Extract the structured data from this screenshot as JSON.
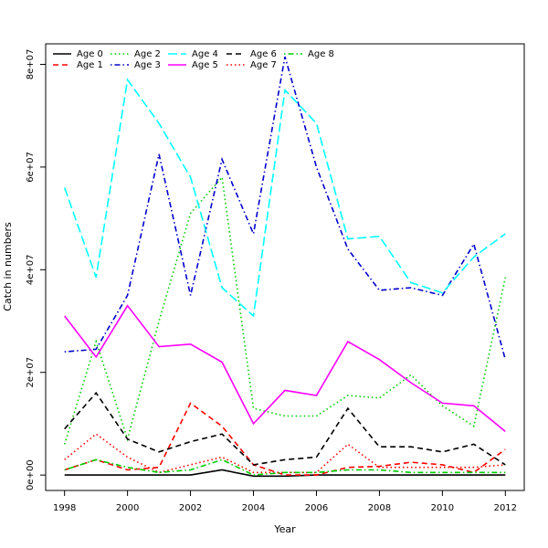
{
  "chart_data": {
    "type": "line",
    "title": "",
    "xlabel": "Year",
    "ylabel": "Catch in numbers",
    "x": [
      1998,
      1999,
      2000,
      2001,
      2002,
      2003,
      2004,
      2005,
      2006,
      2007,
      2008,
      2009,
      2010,
      2011,
      2012
    ],
    "xlim": [
      1997.4,
      2012.6
    ],
    "ylim": [
      -3000000,
      84000000
    ],
    "x_ticks": [
      1998,
      2000,
      2002,
      2004,
      2006,
      2008,
      2010,
      2012
    ],
    "x_tick_labels": [
      "1998",
      "2000",
      "2002",
      "2004",
      "2006",
      "2008",
      "2010",
      "2012"
    ],
    "y_ticks": [
      0,
      20000000,
      40000000,
      60000000,
      80000000
    ],
    "y_tick_labels": [
      "0e+00",
      "2e+07",
      "4e+07",
      "6e+07",
      "8e+07"
    ],
    "grid": false,
    "legend_position": "top-left",
    "series": [
      {
        "name": "Age 0",
        "color": "#000000",
        "dash": "solid",
        "values": [
          0,
          0,
          0,
          0,
          0,
          1000000,
          -200000,
          -200000,
          0,
          0,
          0,
          0,
          0,
          0,
          0
        ]
      },
      {
        "name": "Age 1",
        "color": "#ff0000",
        "dash": "dashed",
        "values": [
          1000000,
          3000000,
          1000000,
          1500000,
          14000000,
          9500000,
          2000000,
          0,
          0,
          1500000,
          1700000,
          2500000,
          2000000,
          500000,
          5000000
        ]
      },
      {
        "name": "Age 2",
        "color": "#00cd00",
        "dash": "dotted",
        "values": [
          6000000,
          26000000,
          7000000,
          30000000,
          51000000,
          58000000,
          13000000,
          11500000,
          11500000,
          15500000,
          15000000,
          19500000,
          13500000,
          9500000,
          38500000
        ]
      },
      {
        "name": "Age 3",
        "color": "#0000cd",
        "dash": "dotdash",
        "values": [
          24000000,
          24500000,
          35000000,
          62500000,
          35000000,
          61500000,
          47000000,
          81500000,
          60000000,
          44000000,
          36000000,
          36500000,
          35000000,
          45000000,
          22500000
        ]
      },
      {
        "name": "Age 4",
        "color": "#00ffff",
        "dash": "longdash",
        "values": [
          56000000,
          38500000,
          77000000,
          68500000,
          58000000,
          36500000,
          31000000,
          75000000,
          68500000,
          46000000,
          46500000,
          37500000,
          35500000,
          42500000,
          47000000
        ]
      },
      {
        "name": "Age 5",
        "color": "#ff00ff",
        "dash": "solid",
        "values": [
          31000000,
          23000000,
          33000000,
          25000000,
          25500000,
          22000000,
          10000000,
          16500000,
          15500000,
          26000000,
          22500000,
          18000000,
          14000000,
          13500000,
          8500000
        ]
      },
      {
        "name": "Age 6",
        "color": "#000000",
        "dash": "dashed",
        "values": [
          9000000,
          16000000,
          7000000,
          4500000,
          6500000,
          8000000,
          2000000,
          3000000,
          3500000,
          13000000,
          5500000,
          5500000,
          4500000,
          6000000,
          2000000
        ]
      },
      {
        "name": "Age 7",
        "color": "#ff0000",
        "dash": "dotted",
        "values": [
          3000000,
          8000000,
          3500000,
          500000,
          2000000,
          3500000,
          500000,
          500000,
          500000,
          6000000,
          1500000,
          1500000,
          1500000,
          1500000,
          2000000
        ]
      },
      {
        "name": "Age 8",
        "color": "#00cd00",
        "dash": "dotdash",
        "values": [
          1000000,
          3000000,
          1500000,
          500000,
          1000000,
          3000000,
          0,
          500000,
          500000,
          1000000,
          1000000,
          500000,
          500000,
          500000,
          500000
        ]
      }
    ]
  }
}
